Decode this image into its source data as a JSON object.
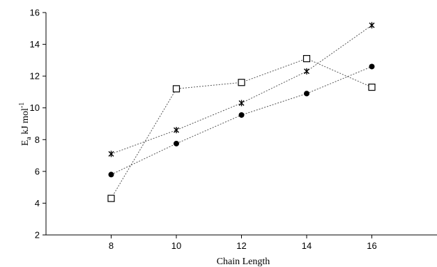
{
  "chart_data": {
    "type": "line",
    "title": "",
    "xlabel": "Chain Length",
    "ylabel_main": "E",
    "ylabel_sub": "a",
    "ylabel_unit": " kJ mol",
    "ylabel_sup": "-1",
    "xlim": [
      6,
      18
    ],
    "ylim": [
      2,
      16
    ],
    "xticks": [
      8,
      10,
      12,
      14,
      16
    ],
    "yticks": [
      2,
      4,
      6,
      8,
      10,
      12,
      14,
      16
    ],
    "x": [
      8,
      10,
      12,
      14,
      16
    ],
    "grid": false,
    "legend": "none",
    "series": [
      {
        "marker": "square-open",
        "color": "#000000",
        "values": [
          4.3,
          11.2,
          11.6,
          13.1,
          11.3
        ]
      },
      {
        "marker": "asterisk",
        "color": "#000000",
        "values": [
          7.1,
          8.6,
          10.3,
          12.3,
          15.2
        ]
      },
      {
        "marker": "circle-filled",
        "color": "#000000",
        "values": [
          5.8,
          7.75,
          9.55,
          10.9,
          12.6
        ]
      }
    ]
  }
}
